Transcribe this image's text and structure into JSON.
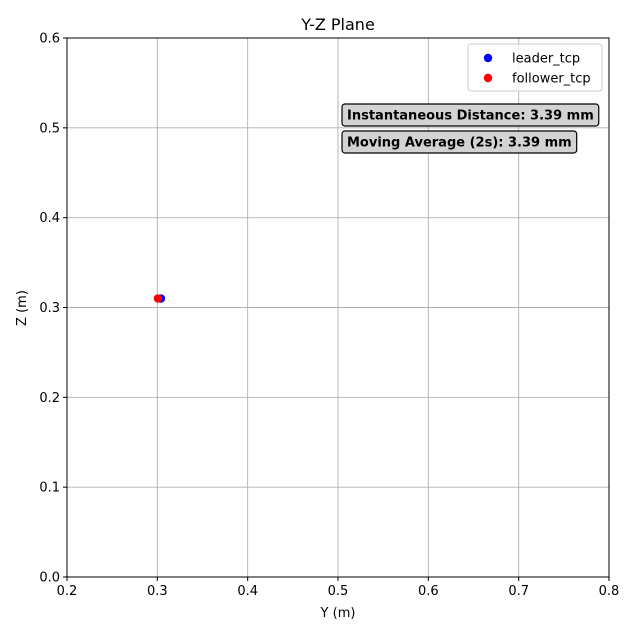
{
  "chart_data": {
    "type": "scatter",
    "title": "Y-Z Plane",
    "xlabel": "Y (m)",
    "ylabel": "Z (m)",
    "xlim": [
      0.2,
      0.8
    ],
    "ylim": [
      0.0,
      0.6
    ],
    "xticks": [
      "0.2",
      "0.3",
      "0.4",
      "0.5",
      "0.6",
      "0.7",
      "0.8"
    ],
    "yticks": [
      "0.0",
      "0.1",
      "0.2",
      "0.3",
      "0.4",
      "0.5",
      "0.6"
    ],
    "grid": true,
    "legend_position": "top-right",
    "series": [
      {
        "name": "leader_tcp",
        "color": "#0000ff",
        "points": [
          {
            "x": 0.304,
            "y": 0.31
          }
        ]
      },
      {
        "name": "follower_tcp",
        "color": "#ff0000",
        "points": [
          {
            "x": 0.3006,
            "y": 0.31
          }
        ]
      }
    ],
    "annotations": [
      {
        "text": "Instantaneous Distance: 3.39 mm"
      },
      {
        "text": "Moving Average (2s): 3.39 mm"
      }
    ]
  }
}
